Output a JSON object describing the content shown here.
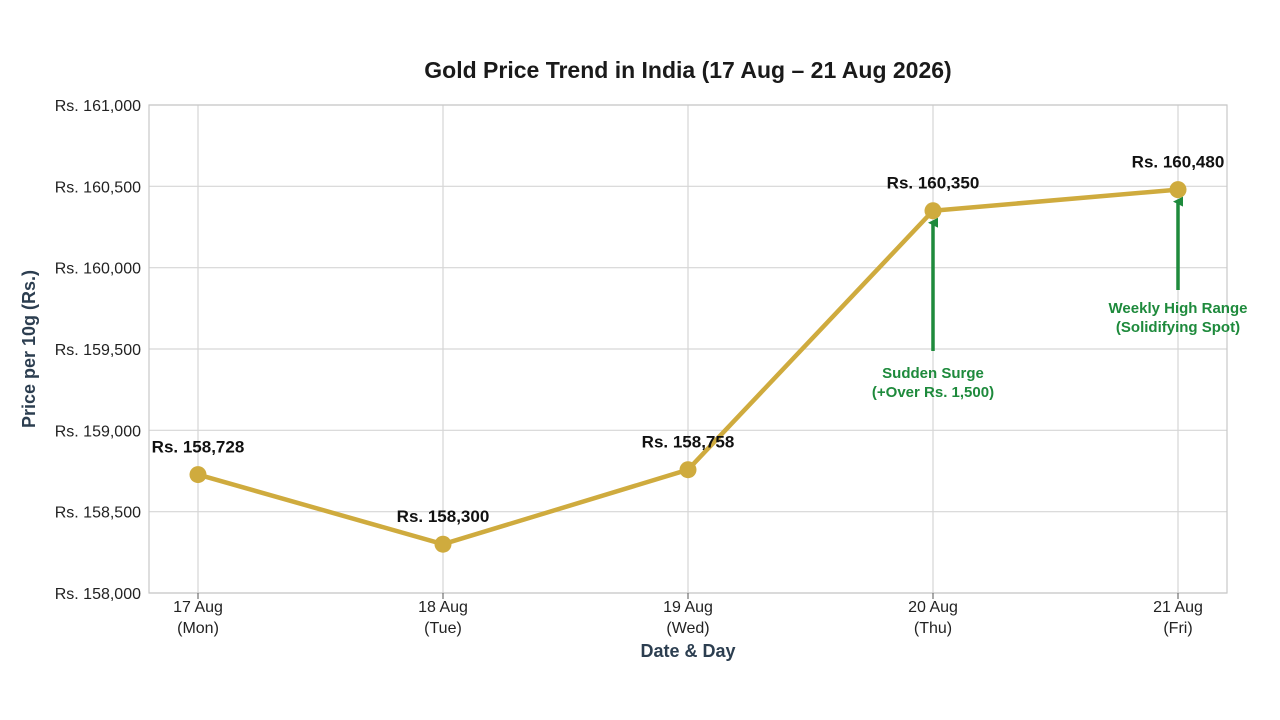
{
  "chart_data": {
    "type": "line",
    "title": "Gold Price Trend in India (17 Aug – 21 Aug 2026)",
    "xlabel": "Date & Day",
    "ylabel": "Price per 10g (Rs.)",
    "ylim": [
      158000,
      161000
    ],
    "yticks": [
      {
        "value": 158000,
        "label": "Rs. 158,000"
      },
      {
        "value": 158500,
        "label": "Rs. 158,500"
      },
      {
        "value": 159000,
        "label": "Rs. 159,000"
      },
      {
        "value": 159500,
        "label": "Rs. 159,500"
      },
      {
        "value": 160000,
        "label": "Rs. 160,000"
      },
      {
        "value": 160500,
        "label": "Rs. 160,500"
      },
      {
        "value": 161000,
        "label": "Rs. 161,000"
      }
    ],
    "categories": [
      {
        "date": "17 Aug",
        "day": "(Mon)"
      },
      {
        "date": "18 Aug",
        "day": "(Tue)"
      },
      {
        "date": "19 Aug",
        "day": "(Wed)"
      },
      {
        "date": "20 Aug",
        "day": "(Thu)"
      },
      {
        "date": "21 Aug",
        "day": "(Fri)"
      }
    ],
    "values": [
      158728,
      158300,
      158758,
      160350,
      160480
    ],
    "data_labels": [
      "Rs. 158,728",
      "Rs. 158,300",
      "Rs. 158,758",
      "Rs. 160,350",
      "Rs. 160,480"
    ],
    "grid": true,
    "line_color": "#cfab3e",
    "annotations": [
      {
        "point_index": 3,
        "lines": [
          "Sudden Surge",
          "(+Over Rs. 1,500)"
        ],
        "color": "#1e8a3c"
      },
      {
        "point_index": 4,
        "lines": [
          "Weekly High Range",
          "(Solidifying Spot)"
        ],
        "color": "#1e8a3c"
      }
    ]
  }
}
